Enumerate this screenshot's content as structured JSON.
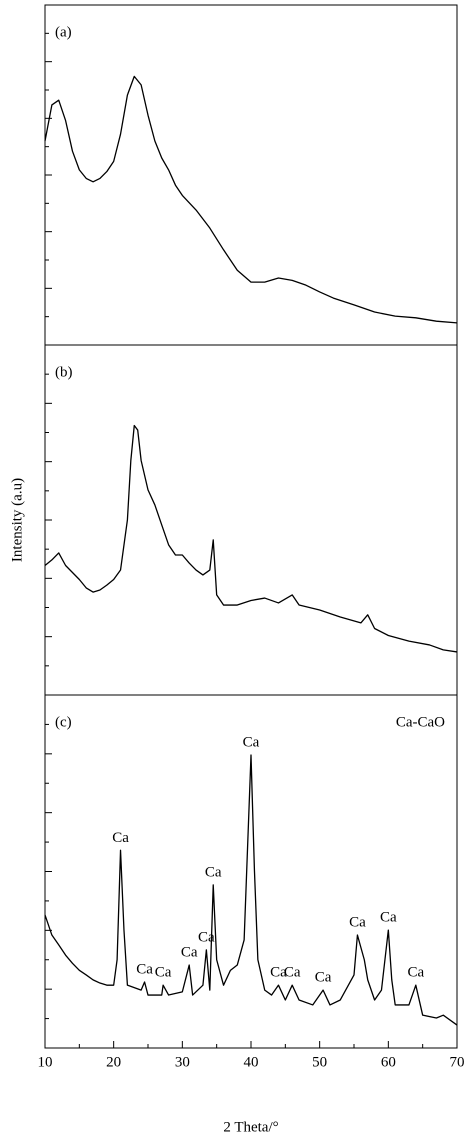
{
  "chart_data": [
    {
      "type": "line",
      "label": "(a)",
      "color": "#000000",
      "xlim": [
        10,
        70
      ],
      "ylim": [
        0,
        100
      ],
      "x": [
        10,
        11,
        12,
        13,
        14,
        15,
        16,
        17,
        18,
        19,
        20,
        21,
        22,
        23,
        24,
        25,
        26,
        27,
        28,
        29,
        30,
        32,
        34,
        36,
        38,
        40,
        42,
        44,
        46,
        48,
        50,
        52,
        55,
        58,
        61,
        64,
        67,
        70
      ],
      "values": [
        60,
        70.6,
        72,
        66,
        57,
        51.5,
        49,
        48,
        49,
        51,
        54,
        62,
        73.5,
        79,
        76.5,
        67.6,
        60,
        55,
        51.5,
        47,
        44,
        39.7,
        34.4,
        28,
        22,
        18.5,
        18.5,
        19.7,
        19,
        17.6,
        15.6,
        13.8,
        11.8,
        9.7,
        8.5,
        8,
        7,
        6.5
      ]
    },
    {
      "type": "line",
      "label": "(b)",
      "ylabel": "Intensity  (a.u)",
      "color": "#000000",
      "xlim": [
        10,
        70
      ],
      "ylim": [
        0,
        100
      ],
      "x": [
        10,
        11,
        12,
        13,
        14,
        15,
        16,
        17,
        18,
        19,
        20,
        21,
        22,
        22.5,
        23,
        23.5,
        24,
        25,
        26,
        27,
        28,
        29,
        30,
        31,
        32,
        33,
        34,
        34.5,
        35,
        36,
        38,
        40,
        42,
        44,
        46,
        47,
        50,
        53,
        56,
        57,
        58,
        60,
        63,
        66,
        68,
        70
      ],
      "values": [
        37,
        38.6,
        40.6,
        37,
        35,
        33,
        30.6,
        29.4,
        30,
        31.4,
        33,
        35.7,
        50,
        67,
        77,
        75.7,
        67,
        58.6,
        54.3,
        48.6,
        42.9,
        40,
        40,
        37.7,
        35.7,
        34.3,
        35.7,
        44.3,
        28.6,
        25.7,
        25.7,
        27,
        27.7,
        26.3,
        28.6,
        25.7,
        24.3,
        22.3,
        20.6,
        22.9,
        19,
        17,
        15.4,
        14.3,
        12.9,
        12.3
      ]
    },
    {
      "type": "line",
      "label": "(c)",
      "legend_text": "Ca-CaO",
      "xlabel": "2 Theta/°",
      "color": "#000000",
      "xlim": [
        10,
        70
      ],
      "ylim": [
        0,
        100
      ],
      "xticks": [
        10,
        20,
        30,
        40,
        50,
        60,
        70
      ],
      "x": [
        10,
        11,
        12,
        13,
        14,
        15,
        16,
        17,
        18,
        19,
        20,
        20.5,
        21,
        21.5,
        22,
        24,
        24.5,
        25,
        27,
        27.2,
        28,
        30,
        31,
        31.5,
        33,
        33.5,
        34,
        34.5,
        35,
        36,
        37,
        38,
        39,
        40,
        40.5,
        41,
        42,
        43,
        44,
        45,
        46,
        47,
        49,
        50.5,
        51.5,
        53,
        55,
        55.5,
        56.5,
        57,
        58,
        59,
        60,
        60.5,
        61,
        63,
        64,
        65,
        67,
        68,
        70
      ],
      "values": [
        37.7,
        32,
        29.2,
        26.3,
        24,
        22,
        20.7,
        19.3,
        18.4,
        17.8,
        17.8,
        25,
        56,
        33.4,
        17.8,
        16.4,
        18.7,
        15,
        15,
        17.8,
        15,
        15.9,
        23.5,
        15,
        17.8,
        27.8,
        16.4,
        46.2,
        25,
        17.8,
        22,
        23.5,
        30.6,
        83,
        50.4,
        25,
        16.4,
        15,
        17.8,
        13.6,
        17.8,
        13.6,
        12.2,
        16.4,
        12.2,
        13.6,
        20.7,
        32,
        25,
        19.3,
        13.6,
        16.4,
        33.4,
        19.3,
        12.2,
        12.2,
        17.8,
        9.3,
        8.5,
        9.3,
        6.5
      ],
      "annotations": [
        {
          "text": "Ca",
          "x": 21
        },
        {
          "text": "Ca",
          "x": 24.5
        },
        {
          "text": "Ca",
          "x": 27.2
        },
        {
          "text": "Ca",
          "x": 31
        },
        {
          "text": "Ca",
          "x": 33.5
        },
        {
          "text": "Ca",
          "x": 34.5
        },
        {
          "text": "Ca",
          "x": 40
        },
        {
          "text": "Ca",
          "x": 44
        },
        {
          "text": "Ca",
          "x": 46
        },
        {
          "text": "Ca",
          "x": 50.5
        },
        {
          "text": "Ca",
          "x": 55.5
        },
        {
          "text": "Ca",
          "x": 60
        },
        {
          "text": "Ca",
          "x": 64
        }
      ]
    }
  ]
}
